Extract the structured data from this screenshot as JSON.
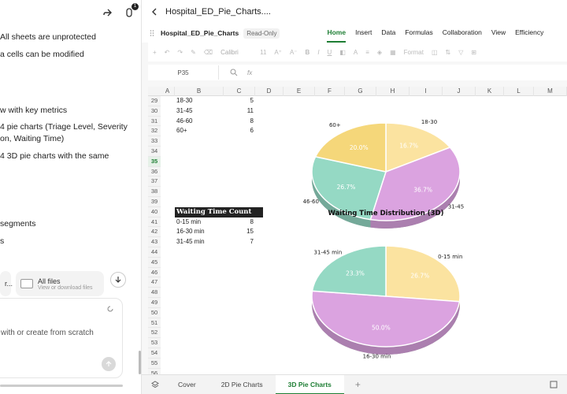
{
  "chat": {
    "lines": [
      {
        "text": "All sheets are unprotected",
        "top": 40
      },
      {
        "text": "a cells can be modified",
        "top": 62
      },
      {
        "text": "w with key metrics",
        "top": 133
      },
      {
        "text": "4 pie charts (Triage Level, Severity",
        "top": 154
      },
      {
        "text": "on, Waiting Time)",
        "top": 169
      },
      {
        "text": "4 3D pie charts with the same",
        "top": 191
      },
      {
        "text": "segments",
        "top": 277
      },
      {
        "text": "s",
        "top": 299
      }
    ],
    "chip_left": "r...",
    "files_label": "All files",
    "files_sub": "View or download files",
    "composer_placeholder": "with or create from scratch"
  },
  "app": {
    "title": "Hospital_ED_Pie_Charts....",
    "doc_name": "Hospital_ED_Pie_Charts",
    "read_only": "Read-Only",
    "menus": [
      "Home",
      "Insert",
      "Data",
      "Formulas",
      "Collaboration",
      "View",
      "Efficiency"
    ],
    "active_menu": "Home",
    "toolbar": {
      "font": "Calibri",
      "size": "11",
      "format": "Format"
    },
    "cell_ref": "P35",
    "fx": "fx"
  },
  "sheet": {
    "columns": [
      "A",
      "B",
      "C",
      "D",
      "E",
      "F",
      "G",
      "H",
      "I",
      "J",
      "K",
      "L",
      "M"
    ],
    "rows": [
      29,
      30,
      31,
      32,
      33,
      34,
      35,
      36,
      37,
      38,
      39,
      40,
      41,
      42,
      43,
      44,
      45,
      46,
      47,
      48,
      49,
      50,
      51,
      52,
      53,
      54,
      55,
      56
    ],
    "selected_row": 35,
    "age_rows": [
      {
        "label": "18-30",
        "value": "5"
      },
      {
        "label": "31-45",
        "value": "11"
      },
      {
        "label": "46-60",
        "value": "8"
      },
      {
        "label": "60+",
        "value": "6"
      }
    ],
    "wait_header": "Waiting Time Count",
    "wait_rows": [
      {
        "label": "0-15 min",
        "value": "8"
      },
      {
        "label": "16-30 min",
        "value": "15"
      },
      {
        "label": "31-45 min",
        "value": "7"
      }
    ]
  },
  "chart_data": [
    {
      "type": "pie",
      "title": "",
      "categories": [
        "18-30",
        "31-45",
        "46-60",
        "60+"
      ],
      "values": [
        5,
        11,
        8,
        6
      ],
      "percent_labels": [
        "16.7%",
        "36.7%",
        "26.7%",
        "20.0%"
      ],
      "colors": [
        "#fbe3a0",
        "#dba3e0",
        "#95d9c4",
        "#f5d77a"
      ]
    },
    {
      "type": "pie",
      "title": "Waiting Time Distribution (3D)",
      "categories": [
        "0-15 min",
        "16-30 min",
        "31-45 min"
      ],
      "values": [
        8,
        15,
        7
      ],
      "percent_labels": [
        "26.7%",
        "50.0%",
        "23.3%"
      ],
      "colors": [
        "#fbe3a0",
        "#dba3e0",
        "#95d9c4"
      ]
    }
  ],
  "tabs": [
    "Cover",
    "2D Pie Charts",
    "3D Pie Charts"
  ],
  "active_tab": "3D Pie Charts"
}
